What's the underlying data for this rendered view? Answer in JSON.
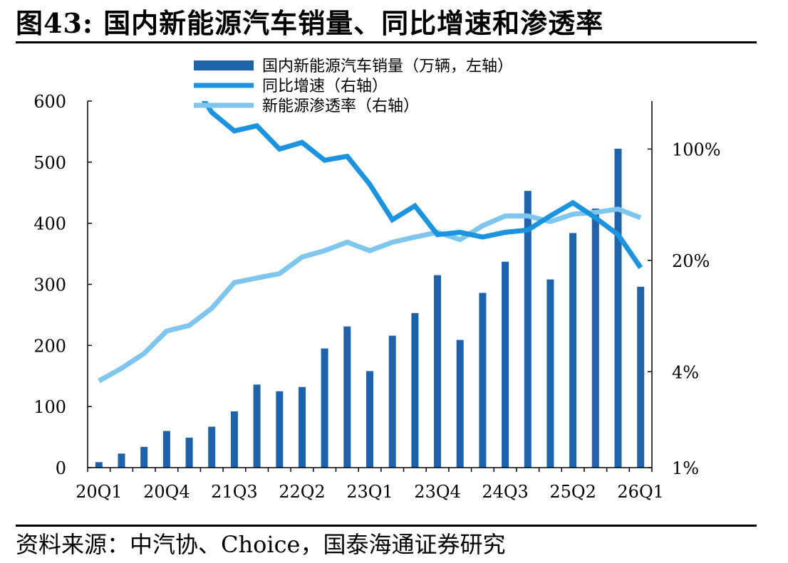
{
  "title": "图43:  国内新能源汽车销量、同比增速和渗透率",
  "source": "资料来源：中汽协、Choice，国泰海通证券研究",
  "colors": {
    "bar": "#1E62AB",
    "growth": "#1C93DE",
    "penetration": "#7FC6EE"
  },
  "chart_data": {
    "type": "bar",
    "categories": [
      "20Q1",
      "20Q2",
      "20Q3",
      "20Q4",
      "21Q1",
      "21Q2",
      "21Q3",
      "21Q4",
      "22Q1",
      "22Q2",
      "22Q3",
      "22Q4",
      "23Q1",
      "23Q2",
      "23Q3",
      "23Q4",
      "24Q1",
      "24Q2",
      "24Q3",
      "24Q4",
      "25Q1",
      "25Q2",
      "25Q3",
      "25Q4",
      "26Q1"
    ],
    "x_tick_labels": [
      "20Q1",
      "20Q4",
      "21Q3",
      "22Q2",
      "23Q1",
      "23Q4",
      "24Q3",
      "25Q2",
      "26Q1"
    ],
    "left_axis": {
      "ylim": [
        0,
        600
      ],
      "ticks": [
        0,
        100,
        200,
        300,
        400,
        500,
        600
      ],
      "tick_labels": [
        "0",
        "100",
        "200",
        "300",
        "400",
        "500",
        "600"
      ]
    },
    "right_axis": {
      "scale": "log",
      "ylim": [
        0.01,
        2.0
      ],
      "ticks": [
        0.01,
        0.04,
        0.2,
        1.0
      ],
      "tick_labels": [
        "1%",
        "4%",
        "20%",
        "100%"
      ]
    },
    "legend_position": "top",
    "series": [
      {
        "name": "国内新能源汽车销量（万辆，左轴）",
        "type": "bar",
        "axis": "left",
        "values": [
          9,
          23,
          34,
          60,
          49,
          67,
          92,
          136,
          125,
          132,
          195,
          231,
          158,
          216,
          253,
          315,
          209,
          286,
          337,
          453,
          308,
          384,
          424,
          522,
          296
        ]
      },
      {
        "name": "同比增速（右轴）",
        "type": "line",
        "axis": "right",
        "values": [
          null,
          null,
          null,
          null,
          2.8,
          1.7,
          1.3,
          1.4,
          1.0,
          1.1,
          0.85,
          0.9,
          0.6,
          0.36,
          0.44,
          0.29,
          0.3,
          0.28,
          0.3,
          0.31,
          0.38,
          0.46,
          0.37,
          0.29,
          0.18
        ]
      },
      {
        "name": "新能源渗透率（右轴）",
        "type": "line",
        "axis": "right",
        "values": [
          0.035,
          0.042,
          0.052,
          0.072,
          0.078,
          0.1,
          0.145,
          0.155,
          0.165,
          0.21,
          0.23,
          0.26,
          0.23,
          0.26,
          0.28,
          0.3,
          0.27,
          0.33,
          0.38,
          0.38,
          0.35,
          0.39,
          0.4,
          0.42,
          0.37
        ]
      }
    ]
  }
}
